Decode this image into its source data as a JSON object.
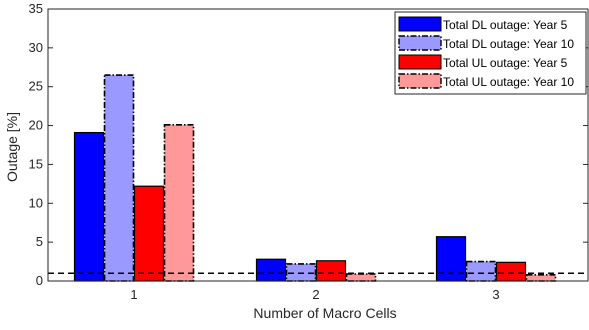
{
  "chart_data": {
    "type": "bar",
    "title": "",
    "xlabel": "Number of Macro Cells",
    "ylabel": "Outage [%]",
    "categories": [
      "1",
      "2",
      "3"
    ],
    "ylim": [
      0,
      35
    ],
    "yticks": [
      "0",
      "5",
      "10",
      "15",
      "20",
      "25",
      "30",
      "35"
    ],
    "grid": false,
    "legend_position": "top-right",
    "reference_line": {
      "value": 1,
      "style": "dashed",
      "color": "#000000"
    },
    "series": [
      {
        "name": "Total DL outage: Year 5",
        "values": [
          19.1,
          2.8,
          5.7
        ],
        "color": "#0000ff",
        "border_style": "solid"
      },
      {
        "name": "Total DL outage: Year 10",
        "values": [
          26.5,
          2.2,
          2.5
        ],
        "color": "#9999ff",
        "border_style": "dash-dot"
      },
      {
        "name": "Total UL outage: Year 5",
        "values": [
          12.2,
          2.6,
          2.4
        ],
        "color": "#ff0000",
        "border_style": "solid"
      },
      {
        "name": "Total UL outage: Year 10",
        "values": [
          20.1,
          0.9,
          0.8
        ],
        "color": "#ff9999",
        "border_style": "dash-dot"
      }
    ]
  }
}
